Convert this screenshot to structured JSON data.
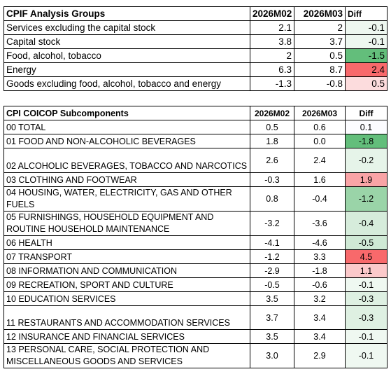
{
  "table1": {
    "headers": [
      "CPIF Analysis Groups",
      "2026M02",
      "2026M03",
      "Diff"
    ],
    "rows": [
      {
        "label": "Services excluding the capital stock",
        "m02": "2.1",
        "m03": "2",
        "diff": "-0.1",
        "fill": "#eef7f0"
      },
      {
        "label": "Capital stock",
        "m02": "3.8",
        "m03": "3.7",
        "diff": "-0.1",
        "fill": "#eef7f0"
      },
      {
        "label": "Food, alcohol, tobacco",
        "m02": "2",
        "m03": "0.5",
        "diff": "-1.5",
        "fill": "#63be7b"
      },
      {
        "label": "Energy",
        "m02": "6.3",
        "m03": "8.7",
        "diff": "2.4",
        "fill": "#f8696b"
      },
      {
        "label": "Goods excluding food, alcohol, tobacco and energy",
        "m02": "-1.3",
        "m03": "-0.8",
        "diff": "0.5",
        "fill": "#fcdcdd"
      }
    ]
  },
  "table2": {
    "headers": [
      "CPI COICOP Subcomponents",
      "2026M02",
      "2026M03",
      "Diff"
    ],
    "rows": [
      {
        "label": "00 TOTAL",
        "m02": "0.5",
        "m03": "0.6",
        "diff": "0.1",
        "fill": "#fcfcff"
      },
      {
        "label": "01 FOOD AND NON-ALCOHOLIC BEVERAGES",
        "m02": "1.8",
        "m03": "0.0",
        "diff": "-1.8",
        "fill": "#63be7b"
      },
      {
        "label": "02 ALCOHOLIC BEVERAGES, TOBACCO AND NARCOTICS",
        "m02": "2.6",
        "m03": "2.4",
        "diff": "-0.2",
        "fill": "#e6f4e9"
      },
      {
        "label": "03 CLOTHING AND FOOTWEAR",
        "m02": "-0.3",
        "m03": "1.6",
        "diff": "1.9",
        "fill": "#f9a4a6"
      },
      {
        "label": "04 HOUSING, WATER, ELECTRICITY, GAS AND OTHER FUELS",
        "m02": "0.8",
        "m03": "-0.4",
        "diff": "-1.2",
        "fill": "#9ad4a8"
      },
      {
        "label": "05 FURNISHINGS, HOUSEHOLD EQUIPMENT AND ROUTINE HOUSEHOLD MAINTENANCE",
        "m02": "-3.2",
        "m03": "-3.6",
        "diff": "-0.4",
        "fill": "#d6ecdb"
      },
      {
        "label": "06 HEALTH",
        "m02": "-4.1",
        "m03": "-4.6",
        "diff": "-0.5",
        "fill": "#cfe9d5"
      },
      {
        "label": "07 TRANSPORT",
        "m02": "-1.2",
        "m03": "3.3",
        "diff": "4.5",
        "fill": "#f8696b"
      },
      {
        "label": "08 INFORMATION AND COMMUNICATION",
        "m02": "-2.9",
        "m03": "-1.8",
        "diff": "1.1",
        "fill": "#fbc9ca"
      },
      {
        "label": "09 RECREATION, SPORT AND CULTURE",
        "m02": "-0.5",
        "m03": "-0.6",
        "diff": "-0.1",
        "fill": "#eff8f1"
      },
      {
        "label": "10 EDUCATION SERVICES",
        "m02": "3.5",
        "m03": "3.2",
        "diff": "-0.3",
        "fill": "#def0e2"
      },
      {
        "label": "11 RESTAURANTS AND ACCOMMODATION SERVICES",
        "m02": "3.7",
        "m03": "3.4",
        "diff": "-0.3",
        "fill": "#def0e2"
      },
      {
        "label": "12 INSURANCE AND FINANCIAL SERVICES",
        "m02": "3.5",
        "m03": "3.4",
        "diff": "-0.1",
        "fill": "#eff8f1"
      },
      {
        "label": "13 PERSONAL CARE, SOCIAL PROTECTION AND MISCELLANEOUS GOODS AND SERVICES",
        "m02": "3.0",
        "m03": "2.9",
        "diff": "-0.1",
        "fill": "#eff8f1"
      }
    ]
  }
}
